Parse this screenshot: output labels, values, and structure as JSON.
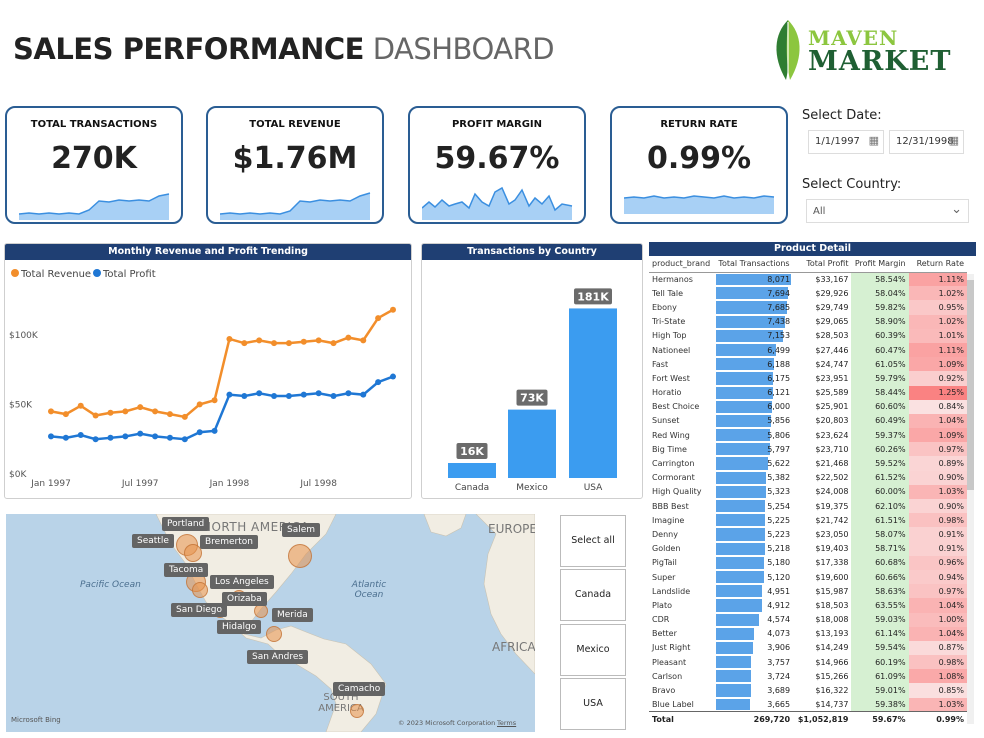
{
  "header": {
    "title_bold": "SALES PERFORMANCE",
    "title_light": "DASHBOARD",
    "logo_line1": "MAVEN",
    "logo_line2": "MARKET"
  },
  "kpis": [
    {
      "label": "TOTAL TRANSACTIONS",
      "value": "270K"
    },
    {
      "label": "TOTAL REVENUE",
      "value": "$1.76M"
    },
    {
      "label": "PROFIT MARGIN",
      "value": "59.67%"
    },
    {
      "label": "RETURN RATE",
      "value": "0.99%"
    }
  ],
  "filters": {
    "date_label": "Select Date:",
    "date_start": "1/1/1997",
    "date_end": "12/31/1998",
    "country_label": "Select Country:",
    "country_value": "All"
  },
  "line_panel": {
    "title": "Monthly Revenue and Profit Trending"
  },
  "bar_panel": {
    "title": "Transactions by Country"
  },
  "slicer": [
    "Select all",
    "Canada",
    "Mexico",
    "USA"
  ],
  "map": {
    "ocean_pacific": "Pacific Ocean",
    "ocean_atlantic": "Atlantic Ocean",
    "region_north_america": "NORTH AMERICA",
    "region_europe": "EUROPE",
    "region_africa": "AFRICA",
    "region_south_america": "SOUTH AMERICA",
    "bing": "Microsoft Bing",
    "copyright": "© 2023 Microsoft Corporation",
    "terms": "Terms",
    "cities": [
      "Portland",
      "Seattle",
      "Bremerton",
      "Salem",
      "Tacoma",
      "Los Angeles",
      "Orizaba",
      "San Diego",
      "Merida",
      "Hidalgo",
      "San Andres",
      "Camacho"
    ]
  },
  "chart_data": [
    {
      "type": "line",
      "title": "Monthly Revenue and Profit Trending",
      "x": [
        "Jan 1997",
        "Feb 1997",
        "Mar 1997",
        "Apr 1997",
        "May 1997",
        "Jun 1997",
        "Jul 1997",
        "Aug 1997",
        "Sep 1997",
        "Oct 1997",
        "Nov 1997",
        "Dec 1997",
        "Jan 1998",
        "Feb 1998",
        "Mar 1998",
        "Apr 1998",
        "May 1998",
        "Jun 1998",
        "Jul 1998",
        "Aug 1998",
        "Sep 1998",
        "Oct 1998",
        "Nov 1998",
        "Dec 1998"
      ],
      "x_ticks": [
        "Jan 1997",
        "Jul 1997",
        "Jan 1998",
        "Jul 1998"
      ],
      "y_ticks": [
        "$0K",
        "$50K",
        "$100K"
      ],
      "ylim": [
        0,
        125000
      ],
      "series": [
        {
          "name": "Total Revenue",
          "color": "#f28e2b",
          "values": [
            45000,
            43000,
            49000,
            42000,
            44000,
            45000,
            48000,
            45000,
            43000,
            41000,
            50000,
            53000,
            97000,
            94000,
            96000,
            94000,
            94000,
            95000,
            96000,
            94000,
            98000,
            96000,
            112000,
            118000
          ]
        },
        {
          "name": "Total Profit",
          "color": "#1f77d4",
          "values": [
            27000,
            26000,
            28000,
            25000,
            26000,
            27000,
            29000,
            27000,
            26000,
            25000,
            30000,
            31000,
            57000,
            56000,
            58000,
            56000,
            56000,
            57000,
            58000,
            56000,
            58000,
            57000,
            66000,
            70000
          ]
        }
      ]
    },
    {
      "type": "bar",
      "title": "Transactions by Country",
      "categories": [
        "Canada",
        "Mexico",
        "USA"
      ],
      "values": [
        16000,
        73000,
        181000
      ],
      "labels": [
        "16K",
        "73K",
        "181K"
      ],
      "color": "#3b9cf0"
    },
    {
      "type": "table",
      "title": "Product Detail",
      "columns": [
        "product_brand",
        "Total Transactions",
        "Total Profit",
        "Profit Margin",
        "Return Rate"
      ],
      "rows": [
        [
          "Hermanos",
          "8,071",
          "$33,167",
          "58.54%",
          "1.11%"
        ],
        [
          "Tell Tale",
          "7,694",
          "$29,926",
          "58.04%",
          "1.02%"
        ],
        [
          "Ebony",
          "7,685",
          "$29,749",
          "59.82%",
          "0.95%"
        ],
        [
          "Tri-State",
          "7,438",
          "$29,065",
          "58.90%",
          "1.02%"
        ],
        [
          "High Top",
          "7,153",
          "$28,503",
          "60.39%",
          "1.01%"
        ],
        [
          "Nationeel",
          "6,499",
          "$27,446",
          "60.47%",
          "1.11%"
        ],
        [
          "Fast",
          "6,188",
          "$24,747",
          "61.05%",
          "1.09%"
        ],
        [
          "Fort West",
          "6,175",
          "$23,951",
          "59.79%",
          "0.92%"
        ],
        [
          "Horatio",
          "6,121",
          "$25,589",
          "58.44%",
          "1.25%"
        ],
        [
          "Best Choice",
          "6,000",
          "$25,901",
          "60.60%",
          "0.84%"
        ],
        [
          "Sunset",
          "5,856",
          "$20,803",
          "60.49%",
          "1.04%"
        ],
        [
          "Red Wing",
          "5,806",
          "$23,624",
          "59.37%",
          "1.09%"
        ],
        [
          "Big Time",
          "5,797",
          "$23,710",
          "60.26%",
          "0.97%"
        ],
        [
          "Carrington",
          "5,622",
          "$21,468",
          "59.52%",
          "0.89%"
        ],
        [
          "Cormorant",
          "5,382",
          "$22,502",
          "61.52%",
          "0.90%"
        ],
        [
          "High Quality",
          "5,323",
          "$24,008",
          "60.00%",
          "1.03%"
        ],
        [
          "BBB Best",
          "5,254",
          "$19,375",
          "62.10%",
          "0.90%"
        ],
        [
          "Imagine",
          "5,225",
          "$21,742",
          "61.51%",
          "0.98%"
        ],
        [
          "Denny",
          "5,223",
          "$23,050",
          "58.07%",
          "0.91%"
        ],
        [
          "Golden",
          "5,218",
          "$19,403",
          "58.71%",
          "0.91%"
        ],
        [
          "PigTail",
          "5,180",
          "$17,338",
          "60.68%",
          "0.96%"
        ],
        [
          "Super",
          "5,120",
          "$19,600",
          "60.66%",
          "0.94%"
        ],
        [
          "Landslide",
          "4,951",
          "$15,987",
          "58.63%",
          "0.97%"
        ],
        [
          "Plato",
          "4,912",
          "$18,503",
          "63.55%",
          "1.04%"
        ],
        [
          "CDR",
          "4,574",
          "$18,008",
          "59.03%",
          "1.00%"
        ],
        [
          "Better",
          "4,073",
          "$13,193",
          "61.14%",
          "1.04%"
        ],
        [
          "Just Right",
          "3,906",
          "$14,249",
          "59.54%",
          "0.87%"
        ],
        [
          "Pleasant",
          "3,757",
          "$14,966",
          "60.19%",
          "0.98%"
        ],
        [
          "Carlson",
          "3,724",
          "$15,266",
          "61.09%",
          "1.08%"
        ],
        [
          "Bravo",
          "3,689",
          "$16,322",
          "59.01%",
          "0.85%"
        ],
        [
          "Blue Label",
          "3,665",
          "$14,737",
          "59.38%",
          "1.03%"
        ]
      ],
      "total": [
        "Total",
        "269,720",
        "$1,052,819",
        "59.67%",
        "0.99%"
      ]
    }
  ]
}
